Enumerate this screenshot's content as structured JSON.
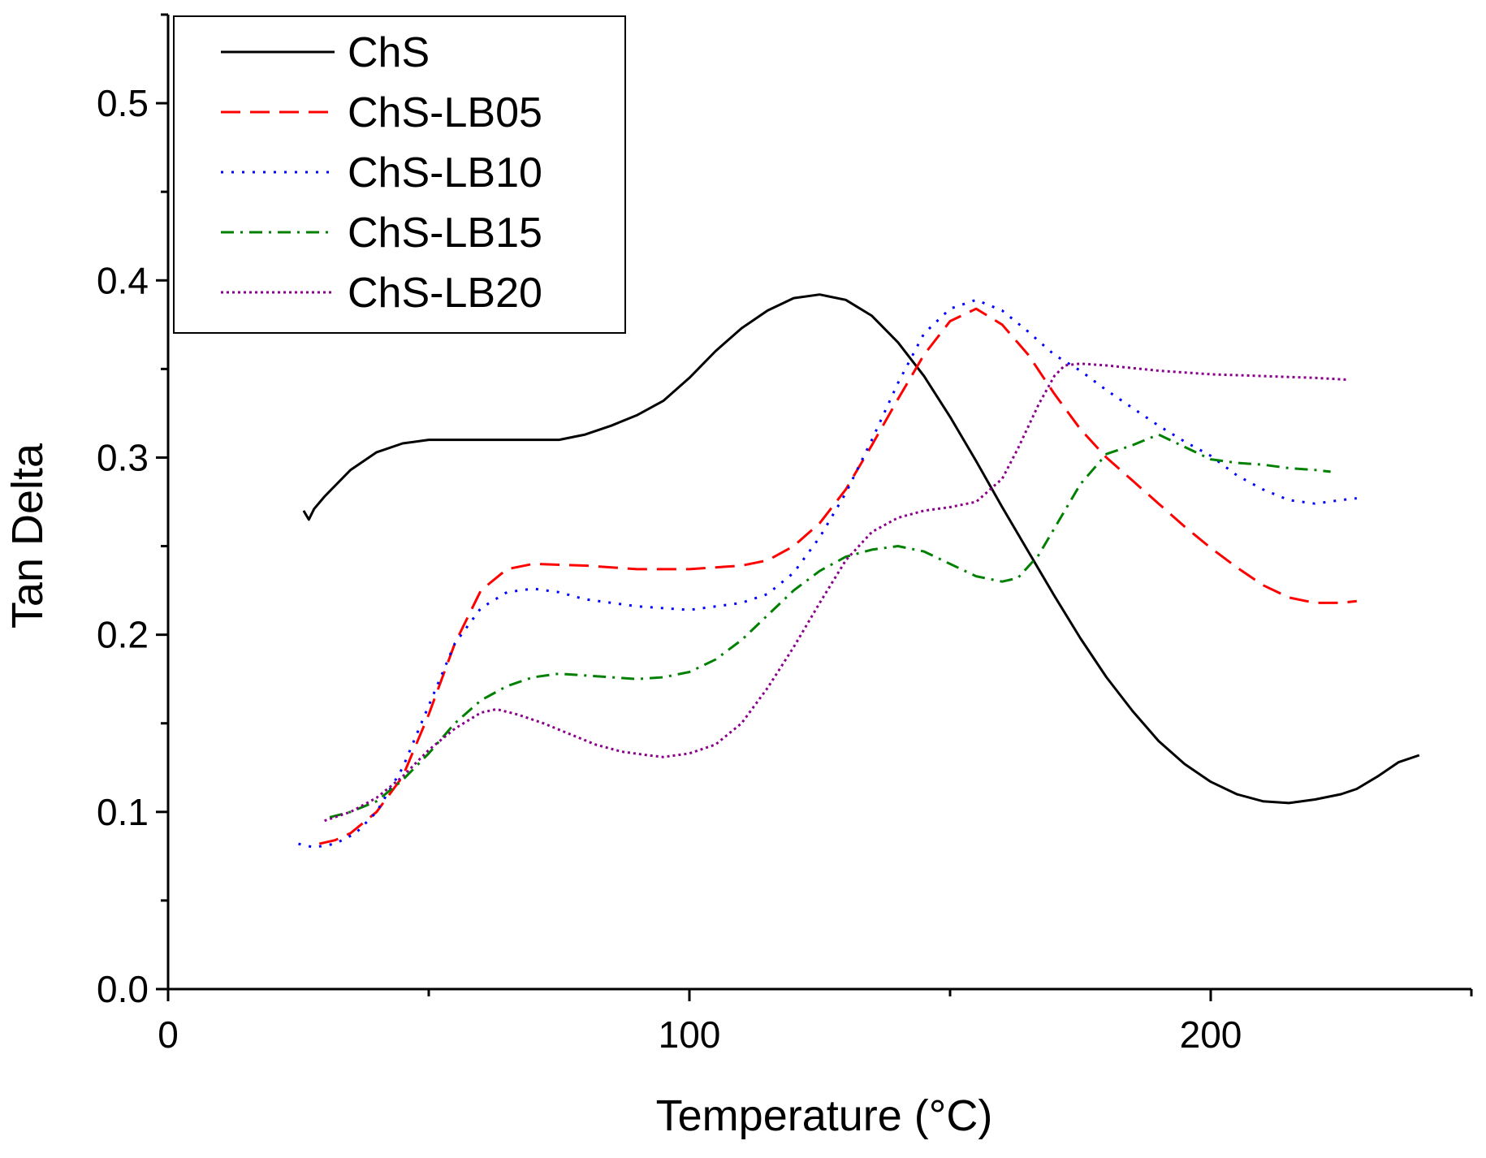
{
  "chart_data": {
    "type": "line",
    "title": "",
    "xlabel": "Temperature (°C)",
    "ylabel": "Tan Delta",
    "xlim": [
      0,
      250
    ],
    "ylim": [
      0,
      0.55
    ],
    "x_ticks": [
      0,
      100,
      200
    ],
    "x_minor_ticks": [
      50,
      150,
      250
    ],
    "y_ticks": [
      0.0,
      0.1,
      0.2,
      0.3,
      0.4,
      0.5
    ],
    "x_tick_labels": [
      "0",
      "100",
      "200"
    ],
    "y_tick_labels": [
      "0.0",
      "0.1",
      "0.2",
      "0.3",
      "0.4",
      "0.5"
    ],
    "grid": false,
    "legend_position": "top-left",
    "series": [
      {
        "name": "ChS",
        "color": "#000000",
        "dash": "solid",
        "points": [
          [
            26,
            0.27
          ],
          [
            27,
            0.265
          ],
          [
            28,
            0.271
          ],
          [
            30,
            0.278
          ],
          [
            35,
            0.293
          ],
          [
            40,
            0.303
          ],
          [
            45,
            0.308
          ],
          [
            50,
            0.31
          ],
          [
            60,
            0.31
          ],
          [
            70,
            0.31
          ],
          [
            75,
            0.31
          ],
          [
            80,
            0.313
          ],
          [
            85,
            0.318
          ],
          [
            90,
            0.324
          ],
          [
            95,
            0.332
          ],
          [
            100,
            0.345
          ],
          [
            105,
            0.36
          ],
          [
            110,
            0.373
          ],
          [
            115,
            0.383
          ],
          [
            120,
            0.39
          ],
          [
            125,
            0.392
          ],
          [
            130,
            0.389
          ],
          [
            135,
            0.38
          ],
          [
            140,
            0.365
          ],
          [
            145,
            0.346
          ],
          [
            150,
            0.323
          ],
          [
            155,
            0.298
          ],
          [
            160,
            0.272
          ],
          [
            165,
            0.247
          ],
          [
            170,
            0.222
          ],
          [
            175,
            0.198
          ],
          [
            180,
            0.176
          ],
          [
            185,
            0.157
          ],
          [
            190,
            0.14
          ],
          [
            195,
            0.127
          ],
          [
            200,
            0.117
          ],
          [
            205,
            0.11
          ],
          [
            210,
            0.106
          ],
          [
            215,
            0.105
          ],
          [
            220,
            0.107
          ],
          [
            225,
            0.11
          ],
          [
            228,
            0.113
          ],
          [
            232,
            0.12
          ],
          [
            236,
            0.128
          ],
          [
            240,
            0.132
          ]
        ]
      },
      {
        "name": "ChS-LB05",
        "color": "#ff0000",
        "dash": "long-dash",
        "points": [
          [
            29,
            0.082
          ],
          [
            32,
            0.084
          ],
          [
            35,
            0.088
          ],
          [
            40,
            0.1
          ],
          [
            45,
            0.12
          ],
          [
            50,
            0.155
          ],
          [
            55,
            0.195
          ],
          [
            60,
            0.225
          ],
          [
            65,
            0.237
          ],
          [
            70,
            0.24
          ],
          [
            80,
            0.239
          ],
          [
            90,
            0.237
          ],
          [
            100,
            0.237
          ],
          [
            110,
            0.239
          ],
          [
            115,
            0.242
          ],
          [
            120,
            0.25
          ],
          [
            125,
            0.263
          ],
          [
            130,
            0.282
          ],
          [
            135,
            0.307
          ],
          [
            140,
            0.333
          ],
          [
            145,
            0.358
          ],
          [
            150,
            0.377
          ],
          [
            155,
            0.384
          ],
          [
            160,
            0.375
          ],
          [
            165,
            0.358
          ],
          [
            170,
            0.336
          ],
          [
            175,
            0.316
          ],
          [
            180,
            0.3
          ],
          [
            185,
            0.287
          ],
          [
            190,
            0.274
          ],
          [
            195,
            0.261
          ],
          [
            200,
            0.249
          ],
          [
            205,
            0.238
          ],
          [
            210,
            0.228
          ],
          [
            215,
            0.221
          ],
          [
            220,
            0.218
          ],
          [
            225,
            0.218
          ],
          [
            228,
            0.219
          ]
        ]
      },
      {
        "name": "ChS-LB10",
        "color": "#0000ff",
        "dash": "dotted",
        "points": [
          [
            25,
            0.082
          ],
          [
            28,
            0.08
          ],
          [
            32,
            0.082
          ],
          [
            36,
            0.088
          ],
          [
            40,
            0.1
          ],
          [
            45,
            0.125
          ],
          [
            50,
            0.16
          ],
          [
            55,
            0.195
          ],
          [
            60,
            0.215
          ],
          [
            65,
            0.224
          ],
          [
            70,
            0.226
          ],
          [
            75,
            0.224
          ],
          [
            80,
            0.22
          ],
          [
            90,
            0.216
          ],
          [
            100,
            0.214
          ],
          [
            110,
            0.218
          ],
          [
            115,
            0.223
          ],
          [
            120,
            0.235
          ],
          [
            125,
            0.255
          ],
          [
            130,
            0.28
          ],
          [
            135,
            0.31
          ],
          [
            140,
            0.342
          ],
          [
            145,
            0.37
          ],
          [
            150,
            0.384
          ],
          [
            155,
            0.389
          ],
          [
            160,
            0.383
          ],
          [
            165,
            0.371
          ],
          [
            170,
            0.358
          ],
          [
            175,
            0.349
          ],
          [
            180,
            0.338
          ],
          [
            185,
            0.328
          ],
          [
            190,
            0.318
          ],
          [
            195,
            0.309
          ],
          [
            200,
            0.301
          ],
          [
            205,
            0.29
          ],
          [
            210,
            0.282
          ],
          [
            215,
            0.276
          ],
          [
            220,
            0.274
          ],
          [
            225,
            0.276
          ],
          [
            228,
            0.277
          ]
        ]
      },
      {
        "name": "ChS-LB15",
        "color": "#008000",
        "dash": "dash-dot",
        "points": [
          [
            31,
            0.097
          ],
          [
            35,
            0.1
          ],
          [
            40,
            0.106
          ],
          [
            45,
            0.118
          ],
          [
            50,
            0.133
          ],
          [
            55,
            0.15
          ],
          [
            60,
            0.163
          ],
          [
            65,
            0.171
          ],
          [
            70,
            0.176
          ],
          [
            75,
            0.178
          ],
          [
            80,
            0.177
          ],
          [
            85,
            0.176
          ],
          [
            90,
            0.175
          ],
          [
            95,
            0.176
          ],
          [
            100,
            0.179
          ],
          [
            105,
            0.186
          ],
          [
            110,
            0.197
          ],
          [
            115,
            0.211
          ],
          [
            120,
            0.225
          ],
          [
            125,
            0.236
          ],
          [
            130,
            0.244
          ],
          [
            135,
            0.248
          ],
          [
            140,
            0.25
          ],
          [
            145,
            0.247
          ],
          [
            150,
            0.24
          ],
          [
            155,
            0.233
          ],
          [
            160,
            0.23
          ],
          [
            163,
            0.232
          ],
          [
            167,
            0.245
          ],
          [
            170,
            0.26
          ],
          [
            175,
            0.285
          ],
          [
            180,
            0.302
          ],
          [
            185,
            0.307
          ],
          [
            190,
            0.313
          ],
          [
            195,
            0.306
          ],
          [
            200,
            0.299
          ],
          [
            205,
            0.297
          ],
          [
            210,
            0.296
          ],
          [
            215,
            0.294
          ],
          [
            220,
            0.293
          ],
          [
            223,
            0.292
          ]
        ]
      },
      {
        "name": "ChS-LB20",
        "color": "#8b008b",
        "dash": "fine-dotted",
        "points": [
          [
            30,
            0.095
          ],
          [
            35,
            0.1
          ],
          [
            40,
            0.108
          ],
          [
            45,
            0.12
          ],
          [
            50,
            0.135
          ],
          [
            55,
            0.147
          ],
          [
            60,
            0.156
          ],
          [
            63,
            0.158
          ],
          [
            67,
            0.155
          ],
          [
            72,
            0.15
          ],
          [
            77,
            0.144
          ],
          [
            82,
            0.138
          ],
          [
            87,
            0.134
          ],
          [
            92,
            0.132
          ],
          [
            95,
            0.131
          ],
          [
            100,
            0.133
          ],
          [
            105,
            0.138
          ],
          [
            110,
            0.15
          ],
          [
            115,
            0.17
          ],
          [
            120,
            0.193
          ],
          [
            125,
            0.218
          ],
          [
            130,
            0.242
          ],
          [
            135,
            0.258
          ],
          [
            140,
            0.266
          ],
          [
            145,
            0.27
          ],
          [
            150,
            0.272
          ],
          [
            155,
            0.275
          ],
          [
            160,
            0.288
          ],
          [
            163,
            0.305
          ],
          [
            167,
            0.33
          ],
          [
            170,
            0.346
          ],
          [
            172,
            0.352
          ],
          [
            175,
            0.353
          ],
          [
            180,
            0.352
          ],
          [
            190,
            0.349
          ],
          [
            200,
            0.347
          ],
          [
            210,
            0.346
          ],
          [
            220,
            0.345
          ],
          [
            226,
            0.344
          ]
        ]
      }
    ]
  }
}
